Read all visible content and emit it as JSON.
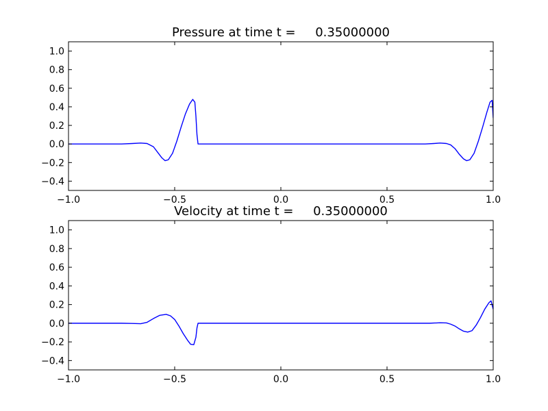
{
  "chart_data": [
    {
      "type": "line",
      "title": "Pressure at time t =     0.35000000",
      "xlim": [
        -1.0,
        1.0
      ],
      "ylim": [
        -0.5,
        1.1
      ],
      "xticks": [
        -1.0,
        -0.5,
        0.0,
        0.5,
        1.0
      ],
      "xtick_labels": [
        "−1.0",
        "−0.5",
        "0.0",
        "0.5",
        "1.0"
      ],
      "yticks": [
        -0.4,
        -0.2,
        0.0,
        0.2,
        0.4,
        0.6,
        0.8,
        1.0
      ],
      "ytick_labels": [
        "−0.4",
        "−0.2",
        "0.0",
        "0.2",
        "0.4",
        "0.6",
        "0.8",
        "1.0"
      ],
      "grid": false,
      "color": "#0000ff",
      "series": [
        {
          "x": [
            -1.0,
            -0.75,
            -0.7,
            -0.66,
            -0.63,
            -0.6,
            -0.58,
            -0.56,
            -0.545,
            -0.53,
            -0.51,
            -0.49,
            -0.47,
            -0.45,
            -0.43,
            -0.415,
            -0.405,
            -0.4,
            -0.395,
            -0.39,
            -0.38,
            -0.2,
            0.0,
            0.3,
            0.6,
            0.65,
            0.68,
            0.72,
            0.75,
            0.78,
            0.8,
            0.82,
            0.84,
            0.86,
            0.875,
            0.89,
            0.91,
            0.93,
            0.95,
            0.97,
            0.985,
            0.995,
            1.0
          ],
          "y": [
            0.0,
            0.0,
            0.005,
            0.01,
            0.005,
            -0.03,
            -0.09,
            -0.15,
            -0.18,
            -0.17,
            -0.1,
            0.03,
            0.18,
            0.32,
            0.43,
            0.48,
            0.45,
            0.3,
            0.1,
            0.0,
            0.0,
            0.0,
            0.0,
            0.0,
            0.0,
            0.0,
            0.0,
            0.005,
            0.01,
            0.005,
            -0.01,
            -0.05,
            -0.11,
            -0.16,
            -0.18,
            -0.17,
            -0.1,
            0.03,
            0.18,
            0.34,
            0.45,
            0.47,
            0.28
          ]
        }
      ]
    },
    {
      "type": "line",
      "title": "Velocity at time t =     0.35000000",
      "xlim": [
        -1.0,
        1.0
      ],
      "ylim": [
        -0.5,
        1.1
      ],
      "xticks": [
        -1.0,
        -0.5,
        0.0,
        0.5,
        1.0
      ],
      "xtick_labels": [
        "−1.0",
        "−0.5",
        "0.0",
        "0.5",
        "1.0"
      ],
      "yticks": [
        -0.4,
        -0.2,
        0.0,
        0.2,
        0.4,
        0.6,
        0.8,
        1.0
      ],
      "ytick_labels": [
        "−0.4",
        "−0.2",
        "0.0",
        "0.2",
        "0.4",
        "0.6",
        "0.8",
        "1.0"
      ],
      "grid": false,
      "color": "#0000ff",
      "series": [
        {
          "x": [
            -1.0,
            -0.75,
            -0.7,
            -0.66,
            -0.63,
            -0.6,
            -0.57,
            -0.54,
            -0.52,
            -0.5,
            -0.48,
            -0.46,
            -0.44,
            -0.425,
            -0.41,
            -0.4,
            -0.395,
            -0.39,
            -0.38,
            -0.2,
            0.0,
            0.3,
            0.6,
            0.7,
            0.75,
            0.78,
            0.8,
            0.82,
            0.84,
            0.86,
            0.88,
            0.9,
            0.92,
            0.94,
            0.96,
            0.98,
            0.99,
            1.0
          ],
          "y": [
            0.0,
            0.0,
            -0.002,
            -0.005,
            0.01,
            0.05,
            0.085,
            0.095,
            0.08,
            0.04,
            -0.03,
            -0.11,
            -0.18,
            -0.225,
            -0.23,
            -0.15,
            -0.05,
            0.0,
            0.0,
            0.0,
            0.0,
            0.0,
            0.0,
            0.0,
            0.005,
            0.003,
            -0.01,
            -0.03,
            -0.06,
            -0.085,
            -0.095,
            -0.08,
            -0.02,
            0.06,
            0.15,
            0.22,
            0.24,
            0.15
          ]
        }
      ]
    }
  ]
}
